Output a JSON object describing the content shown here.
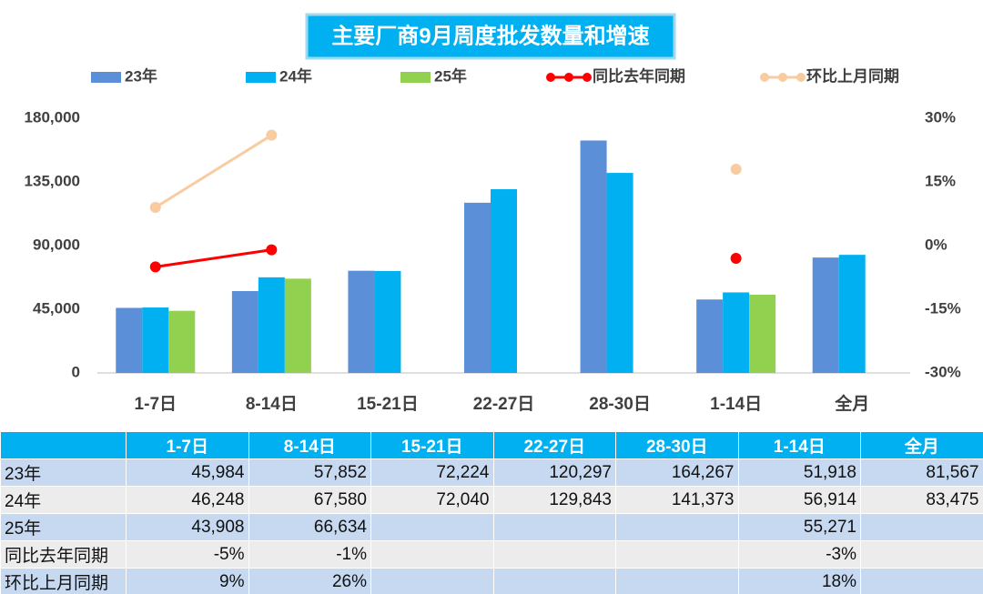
{
  "chart_data": {
    "type": "bar",
    "title": "主要厂商9月周度批发数量和增速",
    "categories": [
      "1-7日",
      "8-14日",
      "15-21日",
      "22-27日",
      "28-30日",
      "1-14日",
      "全月"
    ],
    "series": [
      {
        "name": "23年",
        "color": "#5b8fd8",
        "values": [
          45984,
          57852,
          72224,
          120297,
          164267,
          51918,
          81567
        ]
      },
      {
        "name": "24年",
        "color": "#00b0f0",
        "values": [
          46248,
          67580,
          72040,
          129843,
          141373,
          56914,
          83475
        ]
      },
      {
        "name": "25年",
        "color": "#92d050",
        "values": [
          43908,
          66634,
          null,
          null,
          null,
          55271,
          null
        ]
      },
      {
        "name": "同比去年同期",
        "type": "line",
        "axis": "y2",
        "color": "#ff0000",
        "values": [
          -5,
          -1,
          null,
          null,
          null,
          -3,
          null
        ]
      },
      {
        "name": "环比上月同期",
        "type": "line",
        "axis": "y2",
        "color": "#f8cba0",
        "values": [
          9,
          26,
          null,
          null,
          null,
          18,
          null
        ]
      }
    ],
    "ylim": [
      0,
      180000
    ],
    "yticks": [
      0,
      {
        "value": 45000,
        "label": "45,000"
      },
      {
        "value": 90000,
        "label": "90,000"
      },
      {
        "value": 135000,
        "label": "135,000"
      },
      {
        "value": 180000,
        "label": "180,000"
      }
    ],
    "y2lim": [
      -30,
      30
    ],
    "y2ticks": [
      {
        "value": -30,
        "label": "-30%"
      },
      {
        "value": -15,
        "label": "-15%"
      },
      {
        "value": 0,
        "label": "0%"
      },
      {
        "value": 15,
        "label": "15%"
      },
      {
        "value": 30,
        "label": "30%"
      }
    ],
    "grid": false,
    "legend": "top"
  },
  "table": {
    "header": [
      null,
      "1-7日",
      "8-14日",
      "15-21日",
      "22-27日",
      "28-30日",
      "1-14日",
      "全月"
    ],
    "rows": [
      [
        "23年",
        "45,984",
        "57,852",
        "72,224",
        "120,297",
        "164,267",
        "51,918",
        "81,567"
      ],
      [
        "24年",
        "46,248",
        "67,580",
        "72,040",
        "129,843",
        "141,373",
        "56,914",
        "83,475"
      ],
      [
        "25年",
        "43,908",
        "66,634",
        null,
        null,
        null,
        "55,271",
        null
      ],
      [
        "同比去年同期",
        "-5%",
        "-1%",
        null,
        null,
        null,
        "-3%",
        null
      ],
      [
        "环比上月同期",
        "9%",
        "26%",
        null,
        null,
        null,
        "18%",
        null
      ]
    ]
  }
}
